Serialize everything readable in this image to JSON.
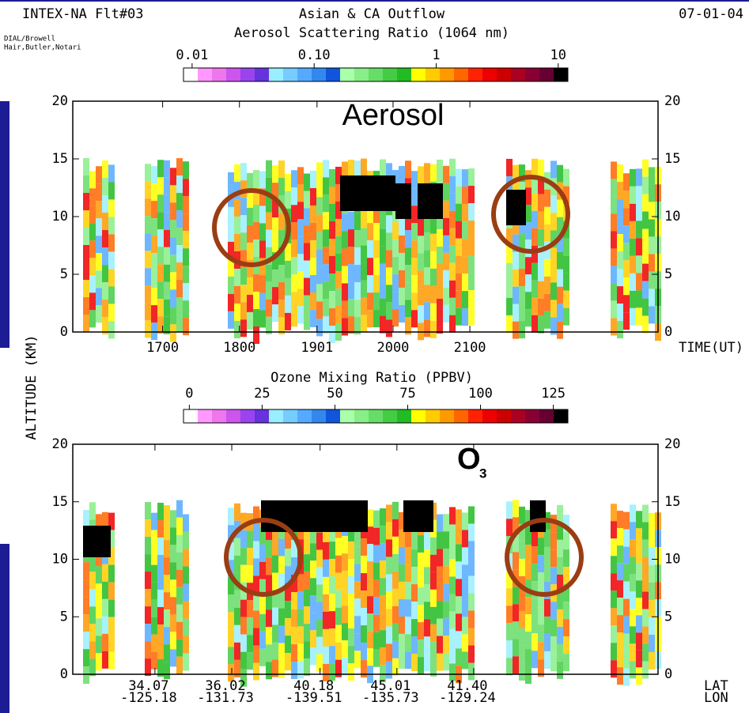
{
  "header": {
    "mission": "INTEX-NA Flt#03",
    "title": "Asian & CA Outflow",
    "date": "07-01-04",
    "credit_1": "DIAL/Browell",
    "credit_2": "Hair,Butler,Notari"
  },
  "y_axis_label": "ALTITUDE (KM)",
  "colorbar_colors": [
    "#ffffff",
    "#ff99ff",
    "#ee77ee",
    "#cc55ee",
    "#9944ee",
    "#6633dd",
    "#99eeff",
    "#77ccff",
    "#55aaff",
    "#3388ee",
    "#1155dd",
    "#aaffaa",
    "#88ee88",
    "#66dd66",
    "#44cc44",
    "#22bb22",
    "#ffff00",
    "#ffcc00",
    "#ff9900",
    "#ff6600",
    "#ff2200",
    "#ee0000",
    "#cc0000",
    "#aa0022",
    "#880033",
    "#660033",
    "#000000"
  ],
  "chart_data": [
    {
      "type": "curtain",
      "title": "Aerosol Scattering Ratio (1064 nm)",
      "panel_label": "Aerosol",
      "colorbar": {
        "log_scale": true,
        "clim": [
          0.0085,
          12
        ],
        "ticks": [
          {
            "value": 0.01,
            "label": "0.01"
          },
          {
            "value": 0.1,
            "label": "0.10"
          },
          1,
          10
        ]
      },
      "x_label": "TIME(UT)",
      "xlim": [
        1583,
        2345
      ],
      "xticks": [
        1700,
        1800,
        1901,
        2000,
        2100
      ],
      "ylim": [
        0,
        20
      ],
      "yticks": [
        0,
        5,
        10,
        15,
        20
      ]
    },
    {
      "type": "curtain",
      "title": "Ozone Mixing Ratio (PPBV)",
      "panel_label": "O",
      "panel_label_sub": "3",
      "colorbar": {
        "log_scale": false,
        "clim": [
          -2,
          130
        ],
        "ticks": [
          0,
          25,
          50,
          75,
          100,
          125
        ]
      },
      "x_label_lat": "LAT",
      "x_label_lon": "LON",
      "xlim": [
        1583,
        2345
      ],
      "xticks": [
        1690,
        1790,
        1905,
        2005,
        2105
      ],
      "lat_labels": [
        "34.07",
        "36.02",
        "40.18",
        "45.01",
        "41.40"
      ],
      "lon_labels": [
        "-125.18",
        "-131.73",
        "-139.51",
        "-135.73",
        "-129.24"
      ],
      "ylim": [
        0,
        20
      ],
      "yticks": [
        0,
        5,
        10,
        15,
        20
      ]
    }
  ]
}
